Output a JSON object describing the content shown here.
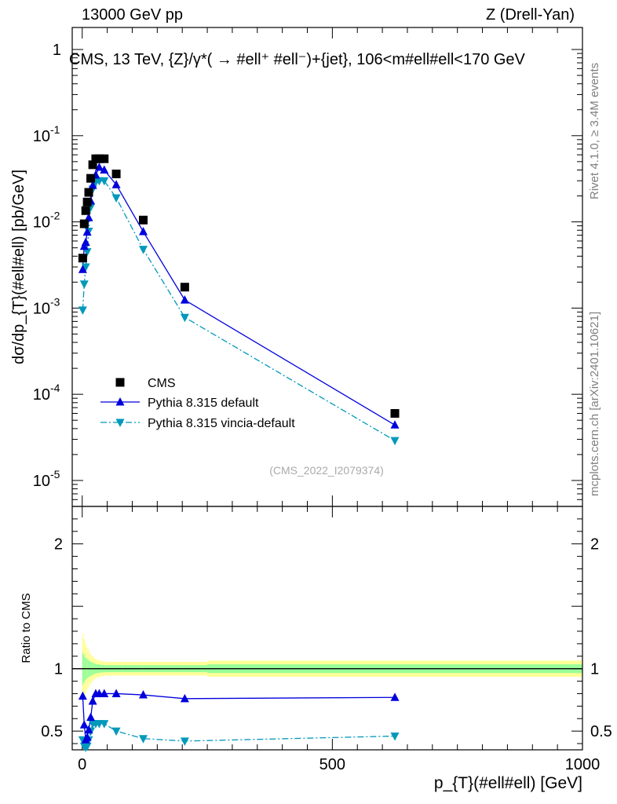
{
  "header": {
    "left": "13000 GeV pp",
    "right": "Z (Drell-Yan)",
    "title": "CMS, 13 TeV, {Z}/γ*( →  #ell⁺ #ell⁻)+{jet}, 106<m#ell#ell<170 GeV"
  },
  "side_labels": {
    "rivet": "Rivet 4.1.0, ≥ 3.4M events",
    "mcplots": "mcplots.cern.ch [arXiv:2401.10621]"
  },
  "watermark": "(CMS_2022_I2079374)",
  "colors": {
    "cms": "#000000",
    "default": "#0000dd",
    "vincia": "#0099bb",
    "band_inner": "#99ff99",
    "band_outer": "#ffff99"
  },
  "chart_data": {
    "type": "scatter",
    "title": "CMS, 13 TeV, {Z}/γ*( →  #ell⁺ #ell⁻)+{jet}, 106<m#ell#ell<170 GeV",
    "xlabel": "p_{T}(#ell#ell) [GeV]",
    "ylabel": "dσ/dp_{T}(#ell#ell) [pb/GeV]",
    "ratio_ylabel": "Ratio to CMS",
    "xlim": [
      -20,
      1000
    ],
    "ylim": [
      5e-06,
      1.8
    ],
    "ratio_ylim": [
      0.35,
      2.3
    ],
    "yscale": "log",
    "x_ticks": [
      0,
      500,
      1000
    ],
    "ratio_ticks": [
      "0.5",
      "1",
      "2"
    ],
    "legend": [
      "CMS",
      "Pythia 8.315 default",
      "Pythia 8.315 vincia-default"
    ],
    "legend_position": "lower-left",
    "x": [
      1,
      4,
      7,
      10,
      13,
      17,
      21,
      27,
      34,
      44,
      68,
      122,
      205,
      625
    ],
    "series": [
      {
        "name": "CMS",
        "marker": "square",
        "line": "none",
        "values": [
          0.0038,
          0.0095,
          0.0135,
          0.017,
          0.022,
          0.032,
          0.046,
          0.054,
          0.054,
          0.054,
          0.036,
          0.0105,
          0.00175,
          6e-05
        ]
      },
      {
        "name": "Pythia 8.315 default",
        "marker": "triangle-up",
        "line": "solid",
        "values": [
          0.0028,
          0.0052,
          0.0058,
          0.0076,
          0.0112,
          0.0175,
          0.0265,
          0.035,
          0.043,
          0.04,
          0.027,
          0.0077,
          0.00124,
          4.4e-05
        ]
      },
      {
        "name": "Pythia 8.315 vincia-default",
        "marker": "triangle-down",
        "line": "dashdot",
        "values": [
          0.00095,
          0.0019,
          0.003,
          0.0045,
          0.0078,
          0.0148,
          0.024,
          0.029,
          0.03,
          0.03,
          0.019,
          0.0048,
          0.00078,
          2.9e-05
        ]
      }
    ],
    "ratio_series": [
      {
        "name": "Pythia 8.315 default",
        "values": [
          0.78,
          0.55,
          0.43,
          0.45,
          0.51,
          0.61,
          0.74,
          0.8,
          0.8,
          0.8,
          0.8,
          0.79,
          0.76,
          0.77
        ]
      },
      {
        "name": "Pythia 8.315 vincia-default",
        "values": [
          0.43,
          0.38,
          0.37,
          0.38,
          0.43,
          0.5,
          0.56,
          0.56,
          0.56,
          0.56,
          0.5,
          0.44,
          0.42,
          0.46
        ]
      }
    ],
    "uncertainty_band": {
      "edges": [
        0,
        2,
        5,
        8,
        11,
        14,
        18,
        23,
        28,
        35,
        45,
        80,
        120,
        200,
        250,
        1000
      ],
      "inner": [
        0.13,
        0.11,
        0.09,
        0.08,
        0.07,
        0.06,
        0.05,
        0.04,
        0.035,
        0.03,
        0.028,
        0.028,
        0.028,
        0.028,
        0.035
      ],
      "outer": [
        0.28,
        0.24,
        0.2,
        0.17,
        0.15,
        0.12,
        0.1,
        0.08,
        0.07,
        0.06,
        0.055,
        0.055,
        0.055,
        0.055,
        0.065
      ]
    }
  }
}
